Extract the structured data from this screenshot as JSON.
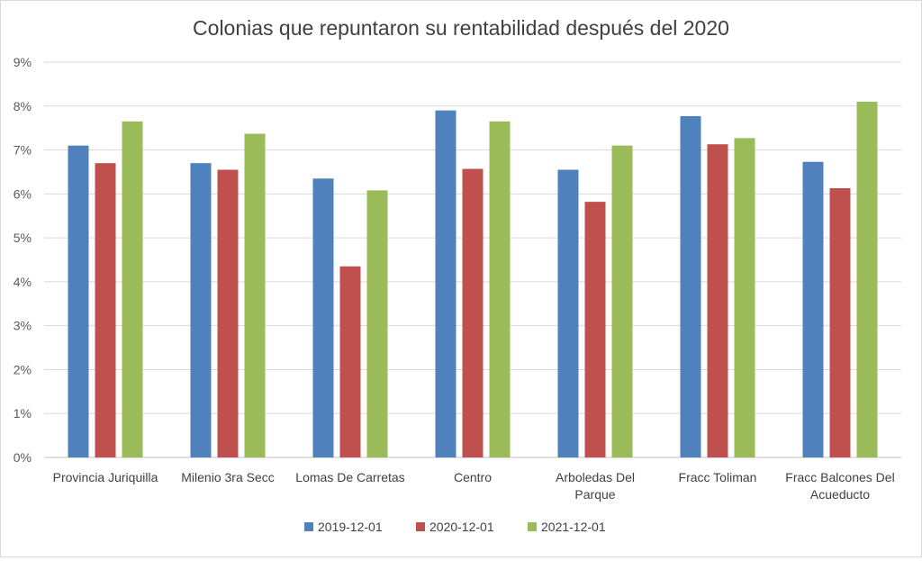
{
  "chart_data": {
    "type": "bar",
    "title": "Colonias que repuntaron su rentabilidad después del 2020",
    "xlabel": "",
    "ylabel": "",
    "ylim": [
      0,
      9
    ],
    "y_ticks": [
      "0%",
      "1%",
      "2%",
      "3%",
      "4%",
      "5%",
      "6%",
      "7%",
      "8%",
      "9%"
    ],
    "grid": true,
    "legend_position": "bottom",
    "categories": [
      [
        "Provincia Juriquilla"
      ],
      [
        "Milenio 3ra Secc"
      ],
      [
        "Lomas De Carretas"
      ],
      [
        "Centro"
      ],
      [
        "Arboledas Del",
        "Parque"
      ],
      [
        "Fracc Toliman"
      ],
      [
        "Fracc Balcones Del",
        "Acueducto"
      ]
    ],
    "series": [
      {
        "name": "2019-12-01",
        "color": "#4f81bd",
        "values": [
          7.1,
          6.7,
          6.35,
          7.9,
          6.55,
          7.77,
          6.73
        ]
      },
      {
        "name": "2020-12-01",
        "color": "#c0504d",
        "values": [
          6.7,
          6.55,
          4.35,
          6.57,
          5.82,
          7.13,
          6.13
        ]
      },
      {
        "name": "2021-12-01",
        "color": "#9bbb59",
        "values": [
          7.65,
          7.37,
          6.08,
          7.65,
          7.1,
          7.27,
          8.1
        ]
      }
    ]
  }
}
